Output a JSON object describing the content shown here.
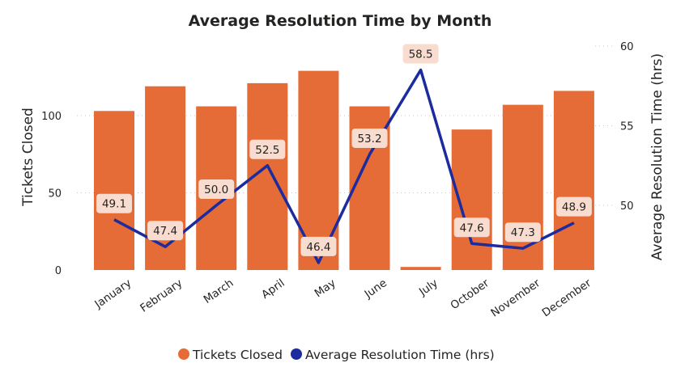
{
  "chart_data": {
    "type": "bar",
    "title": "Average Resolution Time by Month",
    "categories": [
      "January",
      "February",
      "March",
      "April",
      "May",
      "June",
      "July",
      "October",
      "November",
      "December"
    ],
    "series": [
      {
        "name": "Tickets Closed",
        "kind": "bar",
        "axis": "left",
        "color": "#e66c37",
        "values": [
          103,
          119,
          106,
          121,
          129,
          106,
          2,
          91,
          107,
          116
        ]
      },
      {
        "name": "Average Resolution Time (hrs)",
        "kind": "line",
        "axis": "right",
        "color": "#1c2b9e",
        "values": [
          49.1,
          47.4,
          50.0,
          52.5,
          46.4,
          53.2,
          58.5,
          47.6,
          47.3,
          48.9
        ],
        "labels": [
          "49.1",
          "47.4",
          "50.0",
          "52.5",
          "46.4",
          "53.2",
          "58.5",
          "47.6",
          "47.3",
          "48.9"
        ]
      }
    ],
    "y_left": {
      "label": "Tickets Closed",
      "range": [
        0,
        150
      ],
      "ticks": [
        0,
        50,
        100
      ],
      "tick_labels": [
        "0",
        "50",
        "100"
      ]
    },
    "y_right": {
      "label": "Average Resolution Time (hrs)",
      "range": [
        45,
        60
      ],
      "ticks": [
        50,
        55,
        60
      ],
      "tick_labels": [
        "50",
        "55",
        "60"
      ]
    },
    "grid": true,
    "legend": {
      "position": "bottom-center",
      "entries": [
        "Tickets Closed",
        "Average Resolution Time (hrs)"
      ]
    }
  }
}
